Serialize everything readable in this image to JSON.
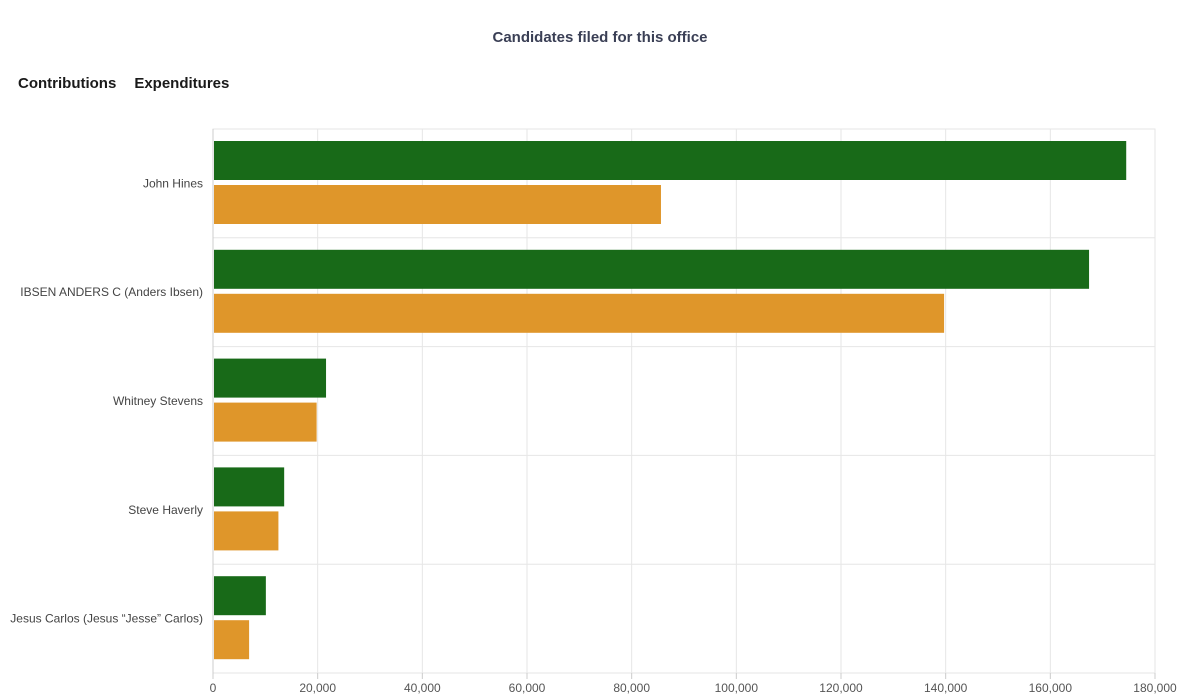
{
  "title": "Candidates filed for this office",
  "legend": [
    {
      "label": "Contributions",
      "color": "#186a18"
    },
    {
      "label": "Expenditures",
      "color": "#df962a"
    }
  ],
  "chart_data": {
    "type": "bar",
    "orientation": "horizontal",
    "categories": [
      "John Hines",
      "IBSEN ANDERS C (Anders Ibsen)",
      "Whitney Stevens",
      "Steve Haverly",
      "Jesus Carlos (Jesus “Jesse” Carlos)"
    ],
    "series": [
      {
        "name": "Contributions",
        "color": "#186a18",
        "values": [
          174500,
          167400,
          21600,
          13600,
          10100
        ]
      },
      {
        "name": "Expenditures",
        "color": "#df962a",
        "values": [
          85600,
          139700,
          19800,
          12500,
          6900
        ]
      }
    ],
    "xlim": [
      0,
      180000
    ],
    "xticks": [
      "0",
      "20,000",
      "40,000",
      "60,000",
      "80,000",
      "100,000",
      "120,000",
      "140,000",
      "160,000",
      "180,000"
    ],
    "grid": true
  }
}
